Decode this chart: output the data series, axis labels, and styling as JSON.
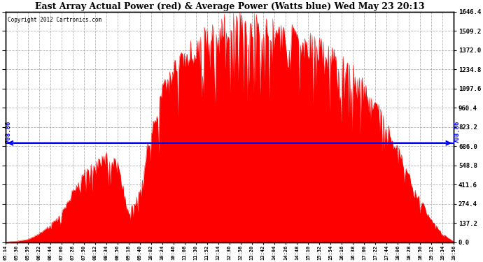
{
  "title": "East Array Actual Power (red) & Average Power (Watts blue) Wed May 23 20:13",
  "copyright": "Copyright 2012 Cartronics.com",
  "avg_power": 708.86,
  "y_max": 1646.4,
  "y_min": 0.0,
  "y_ticks": [
    0.0,
    137.2,
    274.4,
    411.6,
    548.8,
    686.0,
    823.2,
    960.4,
    1097.6,
    1234.8,
    1372.0,
    1509.2,
    1646.4
  ],
  "fill_color": "#ff0000",
  "line_color": "#0000ff",
  "background_color": "#ffffff",
  "grid_color": "#aaaaaa",
  "plot_bg_color": "#ffffff",
  "x_labels": [
    "05:14",
    "05:36",
    "05:59",
    "06:22",
    "06:44",
    "07:06",
    "07:28",
    "07:50",
    "08:12",
    "08:34",
    "08:56",
    "09:18",
    "09:40",
    "10:02",
    "10:24",
    "10:46",
    "11:08",
    "11:30",
    "11:52",
    "12:14",
    "12:36",
    "12:58",
    "13:20",
    "13:42",
    "14:04",
    "14:26",
    "14:48",
    "15:10",
    "15:32",
    "15:54",
    "16:16",
    "16:38",
    "17:00",
    "17:22",
    "17:44",
    "18:06",
    "18:28",
    "18:50",
    "19:12",
    "19:34",
    "19:56"
  ],
  "power_values": [
    2,
    8,
    20,
    60,
    120,
    200,
    350,
    480,
    550,
    600,
    560,
    200,
    350,
    800,
    1050,
    1200,
    1300,
    1380,
    1450,
    1500,
    1530,
    1540,
    1520,
    1500,
    1480,
    1460,
    1440,
    1400,
    1360,
    1300,
    1250,
    1180,
    1080,
    960,
    820,
    650,
    460,
    300,
    160,
    60,
    5
  ]
}
